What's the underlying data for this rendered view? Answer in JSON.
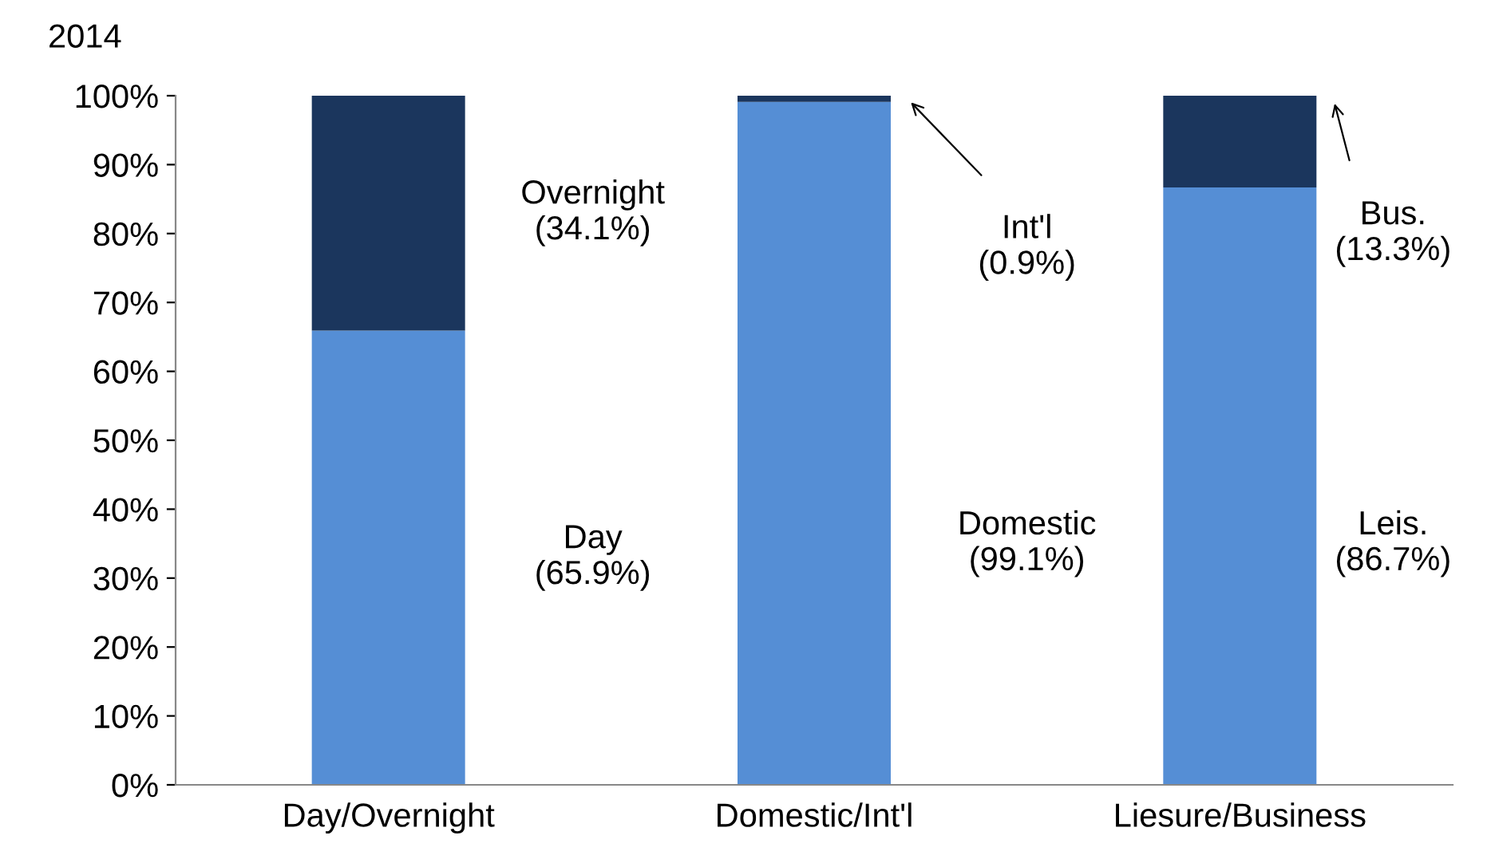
{
  "chart_data": {
    "type": "bar",
    "title": "2014",
    "stacked": true,
    "categories": [
      "Day/Overnight",
      "Domestic/Int'l",
      "Liesure/Business"
    ],
    "series": [
      {
        "color": "#558ed5",
        "values": [
          65.9,
          99.1,
          86.7
        ]
      },
      {
        "color": "#1b365d",
        "values": [
          34.1,
          0.9,
          13.3
        ]
      }
    ],
    "ylim": [
      0,
      100
    ],
    "yticks": [
      {
        "value": 0,
        "label": "0%"
      },
      {
        "value": 10,
        "label": "10%"
      },
      {
        "value": 20,
        "label": "20%"
      },
      {
        "value": 30,
        "label": "30%"
      },
      {
        "value": 40,
        "label": "40%"
      },
      {
        "value": 50,
        "label": "50%"
      },
      {
        "value": 60,
        "label": "60%"
      },
      {
        "value": 70,
        "label": "70%"
      },
      {
        "value": 80,
        "label": "80%"
      },
      {
        "value": 90,
        "label": "90%"
      },
      {
        "value": 100,
        "label": "100%"
      }
    ],
    "grid": false,
    "annotations": [
      "Overnight\n(34.1%)",
      "Day\n(65.9%)",
      "Int'l\n(0.9%)",
      "Domestic\n(99.1%)",
      "Bus.\n(13.3%)",
      "Leis.\n(86.7%)"
    ]
  }
}
